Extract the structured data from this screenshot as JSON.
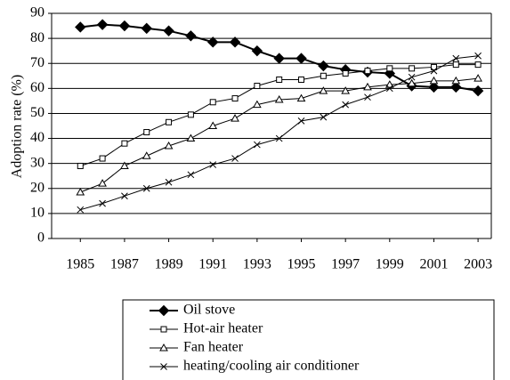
{
  "chart_data": {
    "type": "line",
    "ylabel": "Adoption rate (%)",
    "x": [
      1985,
      1986,
      1987,
      1988,
      1989,
      1990,
      1991,
      1992,
      1993,
      1994,
      1995,
      1996,
      1997,
      1998,
      1999,
      2000,
      2001,
      2002,
      2003
    ],
    "xlim": [
      1983.7,
      2003.6
    ],
    "xticks": [
      1985,
      1987,
      1989,
      1991,
      1993,
      1995,
      1997,
      1999,
      2001,
      2003
    ],
    "ylim": [
      0,
      90
    ],
    "yticks": [
      0,
      10,
      20,
      30,
      40,
      50,
      60,
      70,
      80,
      90
    ],
    "grid": true,
    "legend": "bottom",
    "series": [
      {
        "name": "Oil stove",
        "color": "#000000",
        "marker": "diamond",
        "values": [
          84.5,
          85.5,
          85,
          84,
          83,
          81,
          78.5,
          78.5,
          75,
          72,
          72,
          69,
          67.5,
          66.5,
          66,
          61,
          60.5,
          60.5,
          59
        ]
      },
      {
        "name": "Hot-air heater",
        "color": "#000000",
        "marker": "square",
        "values": [
          29,
          32,
          38,
          42.5,
          46.5,
          49.5,
          54.5,
          56,
          61,
          63.5,
          63.5,
          65,
          66,
          67,
          68,
          68,
          68.5,
          69.5,
          69.5
        ]
      },
      {
        "name": "Fan heater",
        "color": "#000000",
        "marker": "triangle",
        "values": [
          18.5,
          22,
          29,
          33,
          37,
          40,
          45,
          48,
          53.5,
          55.5,
          56,
          59,
          59,
          60.5,
          61.5,
          62,
          63,
          63,
          64
        ]
      },
      {
        "name": "heating/cooling air conditioner",
        "color": "#000000",
        "marker": "cross",
        "values": [
          11.5,
          14,
          17,
          20,
          22.5,
          25.5,
          29.5,
          32,
          37.5,
          40,
          47,
          48.5,
          53.5,
          56.5,
          60,
          64.5,
          67,
          72,
          73
        ]
      }
    ]
  }
}
